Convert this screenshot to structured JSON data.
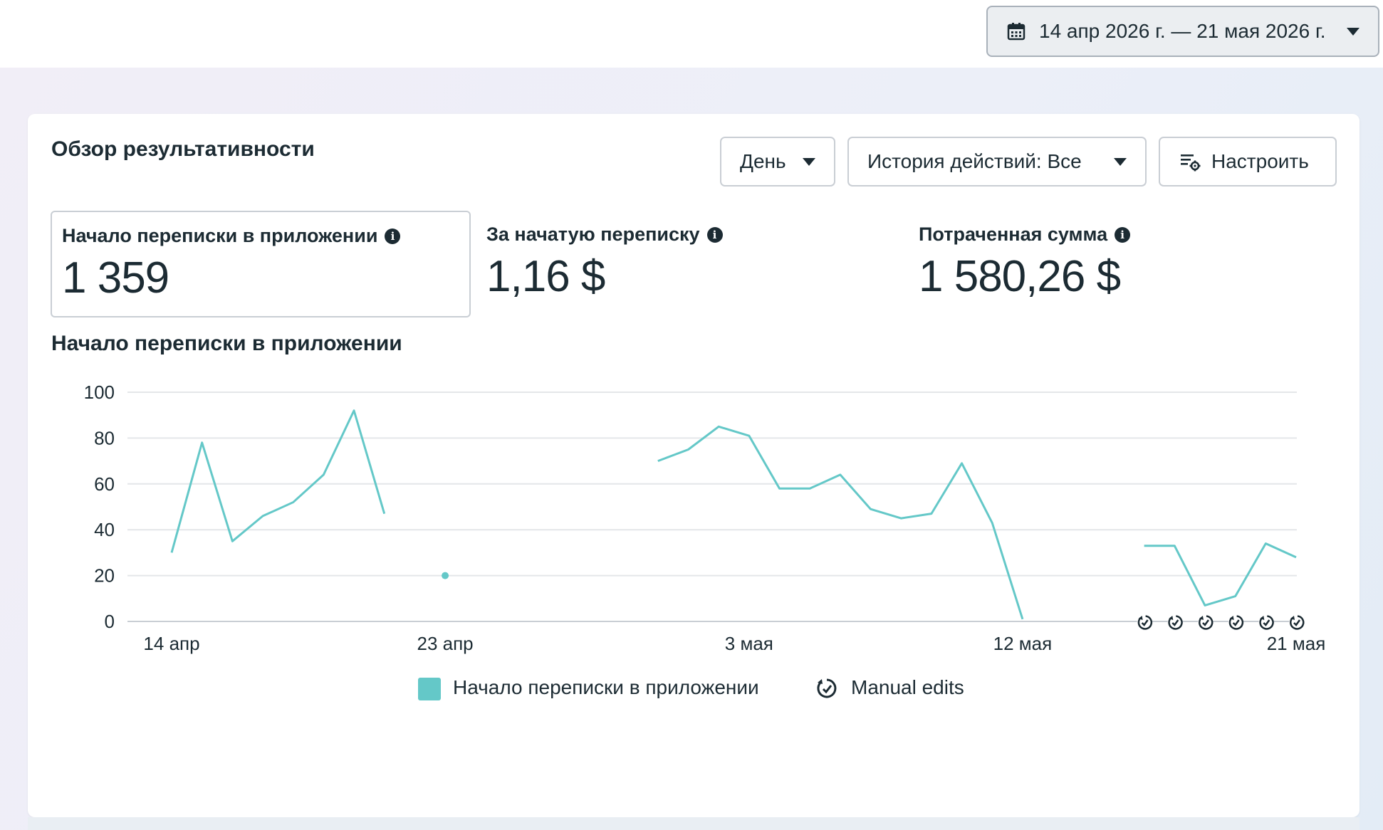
{
  "date_range": {
    "label": "14 апр 2026 г. — 21 мая 2026 г.",
    "icon": "calendar-icon"
  },
  "card": {
    "title": "Обзор результативности",
    "controls": {
      "day_label": "День",
      "history_label": "История действий: Все",
      "setup_label": "Настроить"
    },
    "metrics": [
      {
        "label": "Начало переписки в приложении",
        "value": "1 359"
      },
      {
        "label": "За начатую переписку",
        "value": "1,16 $"
      },
      {
        "label": "Потраченная сумма",
        "value": "1 580,26 $"
      }
    ],
    "chart_title": "Начало переписки в приложении",
    "legend": {
      "series_label": "Начало переписки в приложении",
      "manual_edits_label": "Manual edits"
    }
  },
  "colors": {
    "series": "#64c8c8",
    "grid": "#e4e6e9",
    "text": "#1c2b33"
  },
  "chart_data": {
    "type": "line",
    "x_start": "2026-04-14",
    "x_end": "2026-05-21",
    "x_tick_labels": [
      {
        "date": "2026-04-14",
        "label": "14 апр"
      },
      {
        "date": "2026-04-23",
        "label": "23 апр"
      },
      {
        "date": "2026-05-03",
        "label": "3 мая"
      },
      {
        "date": "2026-05-12",
        "label": "12 мая"
      },
      {
        "date": "2026-05-21",
        "label": "21 мая"
      }
    ],
    "yticks": [
      0,
      20,
      40,
      60,
      80,
      100
    ],
    "ylim": [
      0,
      100
    ],
    "grid": true,
    "legend_position": "bottom",
    "series": [
      {
        "name": "Начало переписки в приложении",
        "color": "#64c8c8",
        "points": [
          {
            "x": "2026-04-14",
            "y": 30
          },
          {
            "x": "2026-04-15",
            "y": 78
          },
          {
            "x": "2026-04-16",
            "y": 35
          },
          {
            "x": "2026-04-17",
            "y": 46
          },
          {
            "x": "2026-04-18",
            "y": 52
          },
          {
            "x": "2026-04-19",
            "y": 64
          },
          {
            "x": "2026-04-20",
            "y": 92
          },
          {
            "x": "2026-04-21",
            "y": 47
          },
          {
            "x": "2026-04-22",
            "y": null
          },
          {
            "x": "2026-04-23",
            "y": 20
          },
          {
            "x": "2026-04-24",
            "y": null
          },
          {
            "x": "2026-04-25",
            "y": null
          },
          {
            "x": "2026-04-26",
            "y": null
          },
          {
            "x": "2026-04-27",
            "y": null
          },
          {
            "x": "2026-04-28",
            "y": null
          },
          {
            "x": "2026-04-29",
            "y": null
          },
          {
            "x": "2026-04-30",
            "y": 70
          },
          {
            "x": "2026-05-01",
            "y": 75
          },
          {
            "x": "2026-05-02",
            "y": 85
          },
          {
            "x": "2026-05-03",
            "y": 81
          },
          {
            "x": "2026-05-04",
            "y": 58
          },
          {
            "x": "2026-05-05",
            "y": 58
          },
          {
            "x": "2026-05-06",
            "y": 64
          },
          {
            "x": "2026-05-07",
            "y": 49
          },
          {
            "x": "2026-05-08",
            "y": 45
          },
          {
            "x": "2026-05-09",
            "y": 47
          },
          {
            "x": "2026-05-10",
            "y": 69
          },
          {
            "x": "2026-05-11",
            "y": 43
          },
          {
            "x": "2026-05-12",
            "y": 1
          },
          {
            "x": "2026-05-13",
            "y": null
          },
          {
            "x": "2026-05-14",
            "y": null
          },
          {
            "x": "2026-05-15",
            "y": null
          },
          {
            "x": "2026-05-16",
            "y": 33
          },
          {
            "x": "2026-05-17",
            "y": 33
          },
          {
            "x": "2026-05-18",
            "y": 7
          },
          {
            "x": "2026-05-19",
            "y": 11
          },
          {
            "x": "2026-05-20",
            "y": 34
          },
          {
            "x": "2026-05-21",
            "y": 28
          }
        ]
      }
    ],
    "manual_edit_markers": [
      "2026-05-16",
      "2026-05-17",
      "2026-05-18",
      "2026-05-19",
      "2026-05-20",
      "2026-05-21"
    ]
  }
}
